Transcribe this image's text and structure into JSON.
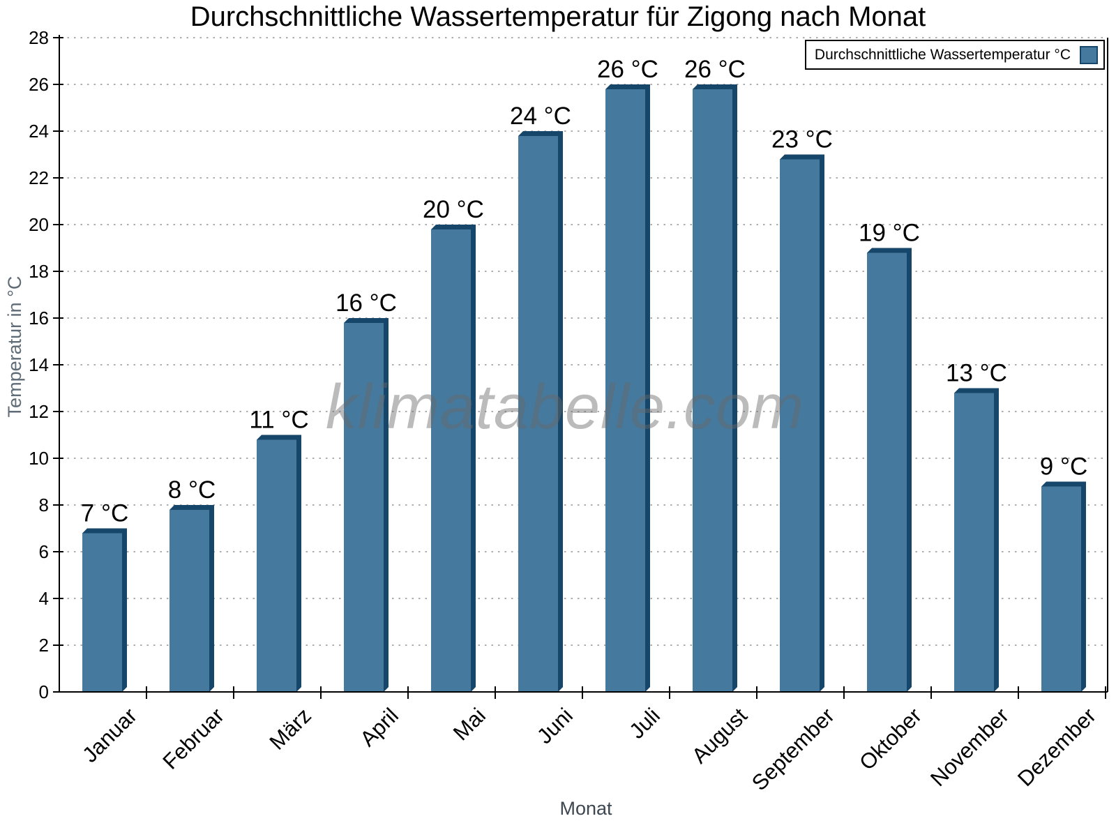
{
  "chart_data": {
    "type": "bar",
    "title": "Durchschnittliche Wassertemperatur für Zigong nach Monat",
    "categories": [
      "Januar",
      "Februar",
      "März",
      "April",
      "Mai",
      "Juni",
      "Juli",
      "August",
      "September",
      "Oktober",
      "November",
      "Dezember"
    ],
    "values": [
      7,
      8,
      11,
      16,
      20,
      24,
      26,
      26,
      23,
      19,
      13,
      9
    ],
    "unit": "°C",
    "value_labels": [
      "7 °C",
      "8 °C",
      "11 °C",
      "16 °C",
      "20 °C",
      "24 °C",
      "26 °C",
      "26 °C",
      "23 °C",
      "19 °C",
      "13 °C",
      "9 °C"
    ],
    "xlabel": "Monat",
    "ylabel": "Temperatur in °C",
    "ylim": [
      0,
      28
    ],
    "ytick_step": 2,
    "ytick_labels": [
      "0",
      "2",
      "4",
      "6",
      "8",
      "10",
      "12",
      "14",
      "16",
      "18",
      "20",
      "22",
      "24",
      "26",
      "28"
    ],
    "legend_label": "Durchschnittliche Wassertemperatur °C",
    "legend_position": "top-right",
    "grid": "horizontal-dotted",
    "bar_color": "#45799d",
    "bar_side_color": "#17466b",
    "grid_color": "#adadad",
    "axis_color": "#000000",
    "watermark": "klimatabelle.com",
    "x_tick_rotation_deg": -45
  }
}
